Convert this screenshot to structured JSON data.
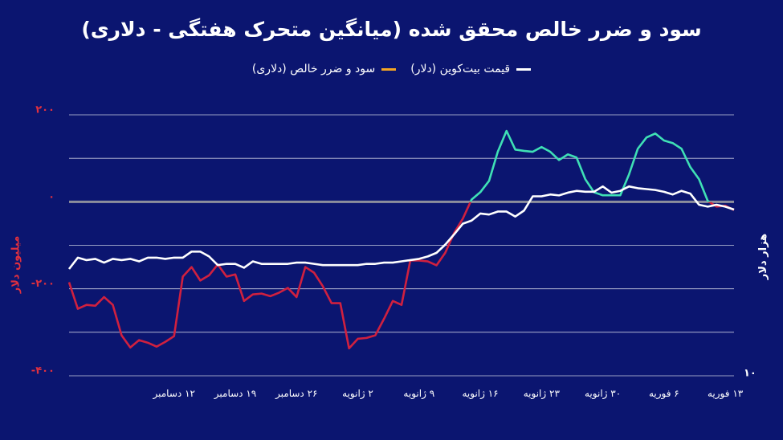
{
  "chart_data": {
    "type": "line",
    "title": "سود و ضرر خالص محقق شده (میانگین متحرک هفتگی - دلاری)",
    "y_label": "میلیون دلار",
    "y2_label": "هزار دلار",
    "categories": [
      null,
      null,
      null,
      null,
      null,
      null,
      null,
      null,
      null,
      null,
      null,
      null,
      "۱۲ دسامبر",
      null,
      null,
      null,
      null,
      null,
      null,
      "۱۹ دسامبر",
      null,
      null,
      null,
      null,
      null,
      null,
      "۲۶ دسامبر",
      null,
      null,
      null,
      null,
      null,
      null,
      "۲ ژانویه",
      null,
      null,
      null,
      null,
      null,
      null,
      "۹ ژانویه",
      null,
      null,
      null,
      null,
      null,
      null,
      "۱۶ ژانویه",
      null,
      null,
      null,
      null,
      null,
      null,
      "۲۳ ژانویه",
      null,
      null,
      null,
      null,
      null,
      null,
      "۳۰ ژانویه",
      null,
      null,
      null,
      null,
      null,
      null,
      "۶ فوریه",
      null,
      null,
      null,
      null,
      null,
      null,
      "۱۳ فوریه",
      null
    ],
    "series": [
      {
        "name": "قیمت بیت‌کوین (دلار)",
        "color": "#ffffff",
        "axis": "y2",
        "values": [
          16.5,
          17.4,
          17.2,
          17.3,
          17.0,
          17.3,
          17.2,
          17.3,
          17.1,
          17.4,
          17.4,
          17.3,
          17.4,
          17.4,
          17.9,
          17.9,
          17.5,
          16.8,
          16.9,
          16.9,
          16.6,
          17.1,
          16.9,
          16.9,
          16.9,
          16.9,
          17.0,
          17.0,
          16.9,
          16.8,
          16.8,
          16.8,
          16.8,
          16.8,
          16.9,
          16.9,
          17.0,
          17.0,
          17.1,
          17.2,
          17.3,
          17.5,
          17.8,
          18.5,
          19.4,
          20.4,
          20.7,
          21.4,
          21.3,
          21.6,
          21.6,
          21.1,
          21.7,
          23.2,
          23.2,
          23.4,
          23.3,
          23.6,
          23.8,
          23.7,
          23.7,
          24.3,
          23.6,
          23.8,
          24.3,
          24.1,
          24.0,
          23.9,
          23.7,
          23.4,
          23.8,
          23.5,
          22.3,
          22.1,
          22.3,
          22.1,
          21.8
        ]
      },
      {
        "name": "سود و ضرر خالص (دلاری)",
        "color": "#f5a623",
        "positive_color": "#3fe0b5",
        "negative_color": "#d0203f",
        "values": [
          -185,
          -246,
          -237,
          -239,
          -219,
          -237,
          -307,
          -335,
          -318,
          -324,
          -333,
          -322,
          -309,
          -172,
          -150,
          -181,
          -169,
          -144,
          -172,
          -167,
          -228,
          -213,
          -211,
          -217,
          -209,
          -198,
          -219,
          -150,
          -163,
          -194,
          -233,
          -233,
          -337,
          -315,
          -313,
          -307,
          -269,
          -228,
          -237,
          -135,
          -135,
          -137,
          -146,
          -117,
          -72,
          -39,
          5,
          22,
          48,
          115,
          163,
          120,
          117,
          115,
          126,
          115,
          96,
          109,
          102,
          52,
          22,
          15,
          15,
          15,
          63,
          122,
          148,
          157,
          141,
          135,
          122,
          80,
          52,
          2,
          -11,
          -9,
          -19
        ]
      }
    ],
    "ylim": [
      -400,
      200
    ],
    "yticks": [
      {
        "value": 200,
        "label": "۲۰۰"
      },
      {
        "value": 0,
        "label": "۰"
      },
      {
        "value": -200,
        "label": "-۲۰۰"
      },
      {
        "value": -400,
        "label": "-۴۰۰"
      }
    ],
    "minor_yticks": [
      100,
      -100,
      -300
    ],
    "y2lim": [
      10,
      34
    ],
    "y2ticks": [
      {
        "value": 10,
        "label": "۱۰"
      }
    ],
    "y2_log": true,
    "grid": true
  }
}
